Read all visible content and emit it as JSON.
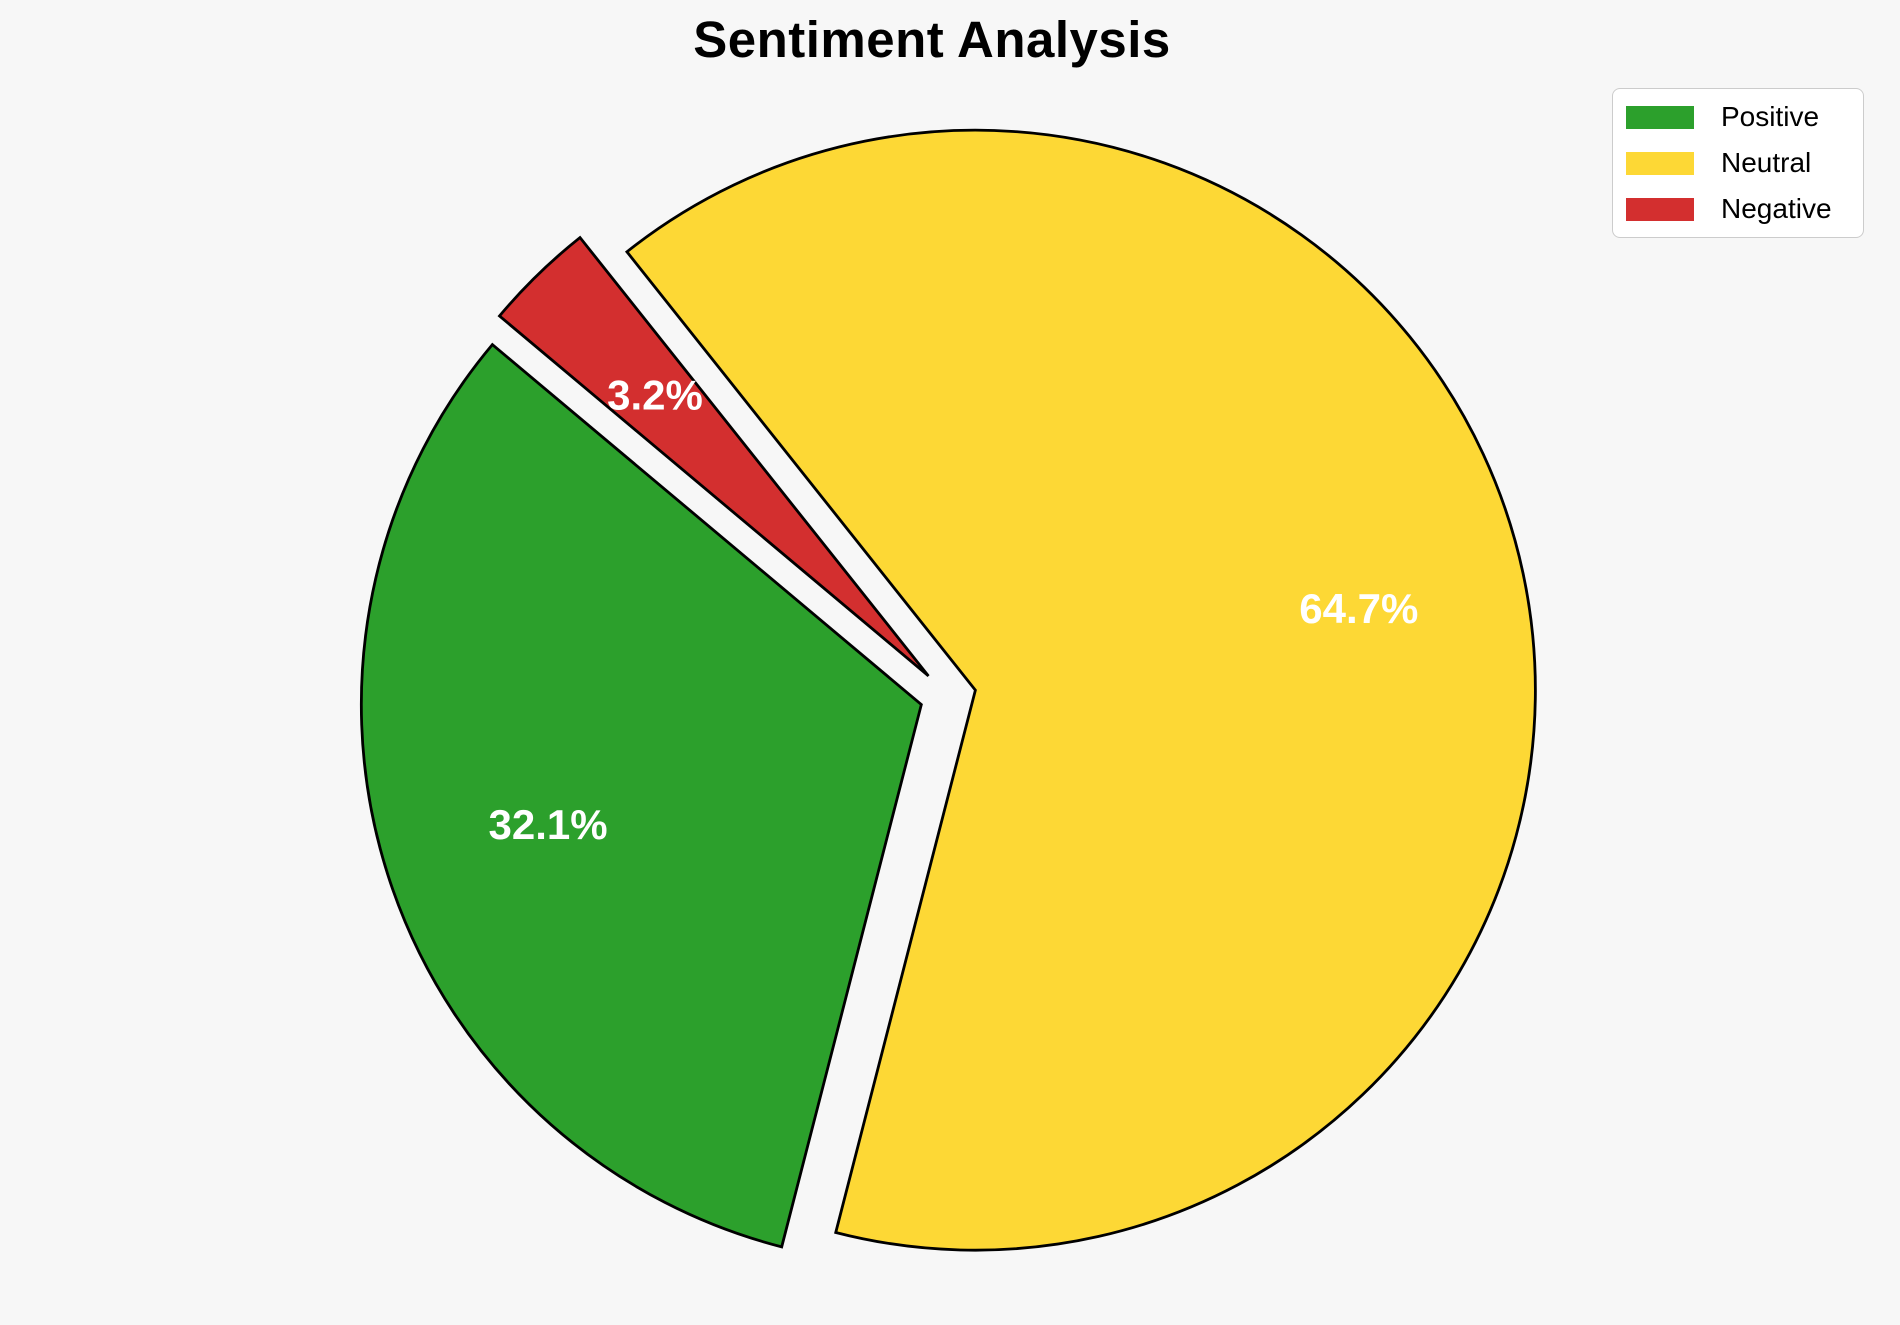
{
  "title": "Sentiment Analysis",
  "chart_data": {
    "type": "pie",
    "title": "Sentiment Analysis",
    "labels": [
      "Positive",
      "Neutral",
      "Negative"
    ],
    "values": [
      32.1,
      64.7,
      3.2
    ],
    "pct_labels": [
      "32.1%",
      "64.7%",
      "3.2%"
    ],
    "colors": [
      "#2ca02c",
      "#fdd835",
      "#d32f2f"
    ],
    "startangle": 140,
    "counterclockwise": true,
    "explode": 0.05,
    "pctdistance": 0.7,
    "edge_color": "#000000",
    "background": "#f7f7f7",
    "legend_position": "upper right"
  },
  "legend": {
    "items": [
      {
        "label": "Positive",
        "color": "#2ca02c"
      },
      {
        "label": "Neutral",
        "color": "#fdd835"
      },
      {
        "label": "Negative",
        "color": "#d32f2f"
      }
    ]
  }
}
